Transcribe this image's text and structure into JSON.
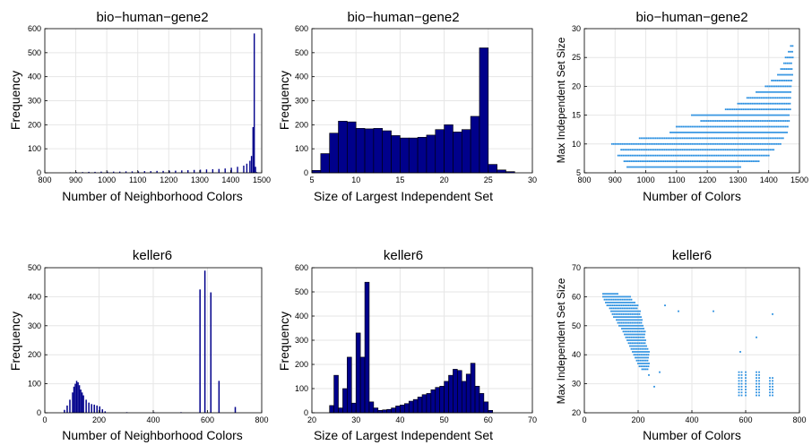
{
  "chart_data": [
    {
      "type": "bar",
      "title": "bio−human−gene2",
      "xlabel": "Number of Neighborhood Colors",
      "ylabel": "Frequency",
      "xlim": [
        800,
        1500
      ],
      "ylim": [
        0,
        600
      ],
      "xticks": [
        800,
        900,
        1000,
        1100,
        1200,
        1300,
        1400,
        1500
      ],
      "yticks": [
        0,
        100,
        200,
        300,
        400,
        500,
        600
      ],
      "grid": true,
      "bar_color": "#00008b",
      "bins_x": [
        880,
        900,
        920,
        940,
        960,
        980,
        1000,
        1020,
        1040,
        1060,
        1080,
        1100,
        1120,
        1140,
        1160,
        1180,
        1200,
        1220,
        1240,
        1260,
        1280,
        1300,
        1320,
        1340,
        1360,
        1380,
        1400,
        1420,
        1440,
        1450,
        1460,
        1465,
        1470,
        1474,
        1478,
        1482
      ],
      "values": [
        2,
        3,
        3,
        4,
        4,
        5,
        5,
        5,
        5,
        6,
        6,
        6,
        7,
        7,
        8,
        8,
        9,
        9,
        10,
        11,
        12,
        13,
        14,
        15,
        16,
        18,
        21,
        25,
        30,
        38,
        50,
        70,
        190,
        580,
        25,
        3
      ],
      "bin_width": 4
    },
    {
      "type": "bar",
      "title": "bio−human−gene2",
      "xlabel": "Size of Largest Independent Set",
      "ylabel": "Frequency",
      "xlim": [
        5,
        30
      ],
      "ylim": [
        0,
        600
      ],
      "xticks": [
        5,
        10,
        15,
        20,
        25,
        30
      ],
      "yticks": [
        0,
        100,
        200,
        300,
        400,
        500,
        600
      ],
      "grid": true,
      "bar_color": "#00008b",
      "bins_x": [
        5,
        6,
        7,
        8,
        9,
        10,
        11,
        12,
        13,
        14,
        15,
        16,
        17,
        18,
        19,
        20,
        21,
        22,
        23,
        24,
        25,
        26,
        27
      ],
      "values": [
        10,
        80,
        165,
        215,
        212,
        185,
        183,
        185,
        175,
        155,
        145,
        145,
        148,
        157,
        180,
        200,
        170,
        180,
        235,
        520,
        35,
        12,
        5
      ],
      "bin_width": 1
    },
    {
      "type": "scatter",
      "title": "bio−human−gene2",
      "xlabel": "Number of Colors",
      "ylabel": "Max Independent Set Size",
      "xlim": [
        800,
        1500
      ],
      "ylim": [
        5,
        30
      ],
      "xticks": [
        800,
        900,
        1000,
        1100,
        1200,
        1300,
        1400,
        1500
      ],
      "yticks": [
        5,
        10,
        15,
        20,
        25,
        30
      ],
      "grid": true,
      "point_color": "#2a8fe0",
      "points_by_y": [
        {
          "y": 6,
          "x_range": [
            940,
            1310
          ]
        },
        {
          "y": 7,
          "x_range": [
            930,
            1370
          ]
        },
        {
          "y": 8,
          "x_range": [
            910,
            1400
          ]
        },
        {
          "y": 9,
          "x_range": [
            920,
            1420
          ]
        },
        {
          "y": 10,
          "x_range": [
            890,
            1440
          ]
        },
        {
          "y": 11,
          "x_range": [
            980,
            1450
          ]
        },
        {
          "y": 12,
          "x_range": [
            1080,
            1460
          ]
        },
        {
          "y": 13,
          "x_range": [
            1100,
            1465
          ]
        },
        {
          "y": 14,
          "x_range": [
            1180,
            1470
          ]
        },
        {
          "y": 15,
          "x_range": [
            1150,
            1470
          ]
        },
        {
          "y": 16,
          "x_range": [
            1260,
            1470
          ]
        },
        {
          "y": 17,
          "x_range": [
            1300,
            1472
          ]
        },
        {
          "y": 18,
          "x_range": [
            1330,
            1472
          ]
        },
        {
          "y": 19,
          "x_range": [
            1360,
            1474
          ]
        },
        {
          "y": 20,
          "x_range": [
            1390,
            1475
          ]
        },
        {
          "y": 21,
          "x_range": [
            1410,
            1476
          ]
        },
        {
          "y": 22,
          "x_range": [
            1430,
            1477
          ]
        },
        {
          "y": 23,
          "x_range": [
            1440,
            1478
          ]
        },
        {
          "y": 24,
          "x_range": [
            1450,
            1478
          ]
        },
        {
          "y": 25,
          "x_range": [
            1455,
            1479
          ]
        },
        {
          "y": 26,
          "x_range": [
            1465,
            1479
          ]
        },
        {
          "y": 27,
          "x_range": [
            1472,
            1479
          ]
        }
      ]
    },
    {
      "type": "bar",
      "title": "keller6",
      "xlabel": "Number of Neighborhood Colors",
      "ylabel": "Frequency",
      "xlim": [
        0,
        800
      ],
      "ylim": [
        0,
        500
      ],
      "xticks": [
        0,
        200,
        400,
        600,
        800
      ],
      "yticks": [
        0,
        100,
        200,
        300,
        400,
        500
      ],
      "grid": true,
      "bar_color": "#00008b",
      "bins_x": [
        70,
        80,
        90,
        100,
        105,
        110,
        115,
        120,
        125,
        130,
        135,
        140,
        150,
        160,
        170,
        180,
        190,
        200,
        210,
        220,
        300,
        400,
        500,
        570,
        588,
        610,
        640,
        700
      ],
      "values": [
        10,
        25,
        45,
        70,
        90,
        100,
        110,
        105,
        95,
        80,
        70,
        60,
        45,
        35,
        30,
        28,
        25,
        22,
        12,
        5,
        2,
        2,
        2,
        425,
        490,
        415,
        110,
        20
      ],
      "bin_width": 5
    },
    {
      "type": "bar",
      "title": "keller6",
      "xlabel": "Size of Largest Independent Set",
      "ylabel": "Frequency",
      "xlim": [
        20,
        70
      ],
      "ylim": [
        0,
        600
      ],
      "xticks": [
        20,
        30,
        40,
        50,
        60,
        70
      ],
      "yticks": [
        0,
        100,
        200,
        300,
        400,
        500,
        600
      ],
      "grid": true,
      "bar_color": "#00008b",
      "bins_x": [
        24,
        25,
        26,
        27,
        28,
        29,
        30,
        31,
        32,
        33,
        34,
        35,
        36,
        37,
        38,
        39,
        40,
        41,
        42,
        43,
        44,
        45,
        46,
        47,
        48,
        49,
        50,
        51,
        52,
        53,
        54,
        55,
        56,
        57,
        58,
        59,
        60
      ],
      "values": [
        30,
        155,
        20,
        100,
        230,
        40,
        330,
        230,
        540,
        45,
        20,
        10,
        12,
        14,
        20,
        28,
        32,
        38,
        48,
        55,
        65,
        75,
        80,
        95,
        105,
        110,
        130,
        155,
        180,
        175,
        130,
        160,
        205,
        110,
        80,
        45,
        10
      ],
      "bin_width": 1
    },
    {
      "type": "scatter",
      "title": "keller6",
      "xlabel": "Number of Colors",
      "ylabel": "Max Independent Set Size",
      "xlim": [
        0,
        800
      ],
      "ylim": [
        20,
        70
      ],
      "xticks": [
        0,
        200,
        400,
        600,
        800
      ],
      "yticks": [
        20,
        30,
        40,
        50,
        60,
        70
      ],
      "grid": true,
      "point_color": "#2a8fe0",
      "points_by_y": [
        {
          "y": 61,
          "x_range": [
            70,
            130
          ]
        },
        {
          "y": 60,
          "x_range": [
            70,
            170
          ]
        },
        {
          "y": 59,
          "x_range": [
            75,
            180
          ]
        },
        {
          "y": 58,
          "x_range": [
            80,
            190
          ]
        },
        {
          "y": 57,
          "x_range": [
            85,
            200
          ]
        },
        {
          "y": 56,
          "x_range": [
            95,
            200
          ]
        },
        {
          "y": 55,
          "x_range": [
            100,
            210
          ]
        },
        {
          "y": 54,
          "x_range": [
            105,
            210
          ]
        },
        {
          "y": 53,
          "x_range": [
            110,
            210
          ]
        },
        {
          "y": 52,
          "x_range": [
            120,
            215
          ]
        },
        {
          "y": 51,
          "x_range": [
            125,
            215
          ]
        },
        {
          "y": 50,
          "x_range": [
            130,
            220
          ]
        },
        {
          "y": 49,
          "x_range": [
            140,
            220
          ]
        },
        {
          "y": 48,
          "x_range": [
            145,
            225
          ]
        },
        {
          "y": 47,
          "x_range": [
            150,
            225
          ]
        },
        {
          "y": 46,
          "x_range": [
            155,
            225
          ]
        },
        {
          "y": 45,
          "x_range": [
            160,
            230
          ]
        },
        {
          "y": 44,
          "x_range": [
            165,
            230
          ]
        },
        {
          "y": 43,
          "x_range": [
            170,
            235
          ]
        },
        {
          "y": 42,
          "x_range": [
            175,
            235
          ]
        },
        {
          "y": 41,
          "x_range": [
            180,
            240
          ]
        },
        {
          "y": 40,
          "x_range": [
            185,
            240
          ]
        },
        {
          "y": 39,
          "x_range": [
            190,
            240
          ]
        },
        {
          "y": 38,
          "x_range": [
            195,
            240
          ]
        },
        {
          "y": 37,
          "x_range": [
            200,
            240
          ]
        },
        {
          "y": 36,
          "x_range": [
            205,
            240
          ]
        },
        {
          "y": 35,
          "x_range": [
            215,
            240
          ]
        }
      ],
      "clusters": [
        {
          "x": 575,
          "y_range": [
            26,
            34
          ]
        },
        {
          "x": 585,
          "y_range": [
            26,
            34
          ]
        },
        {
          "x": 600,
          "y_range": [
            26,
            34
          ]
        },
        {
          "x": 640,
          "y_range": [
            26,
            34
          ]
        },
        {
          "x": 650,
          "y_range": [
            26,
            34
          ]
        },
        {
          "x": 690,
          "y_range": [
            26,
            32
          ]
        },
        {
          "x": 700,
          "y_range": [
            26,
            32
          ]
        }
      ],
      "outliers": [
        [
          280,
          34
        ],
        [
          260,
          29
        ],
        [
          240,
          33
        ],
        [
          300,
          57
        ],
        [
          350,
          55
        ],
        [
          480,
          55
        ],
        [
          640,
          46
        ],
        [
          700,
          54
        ],
        [
          580,
          41
        ]
      ]
    }
  ]
}
